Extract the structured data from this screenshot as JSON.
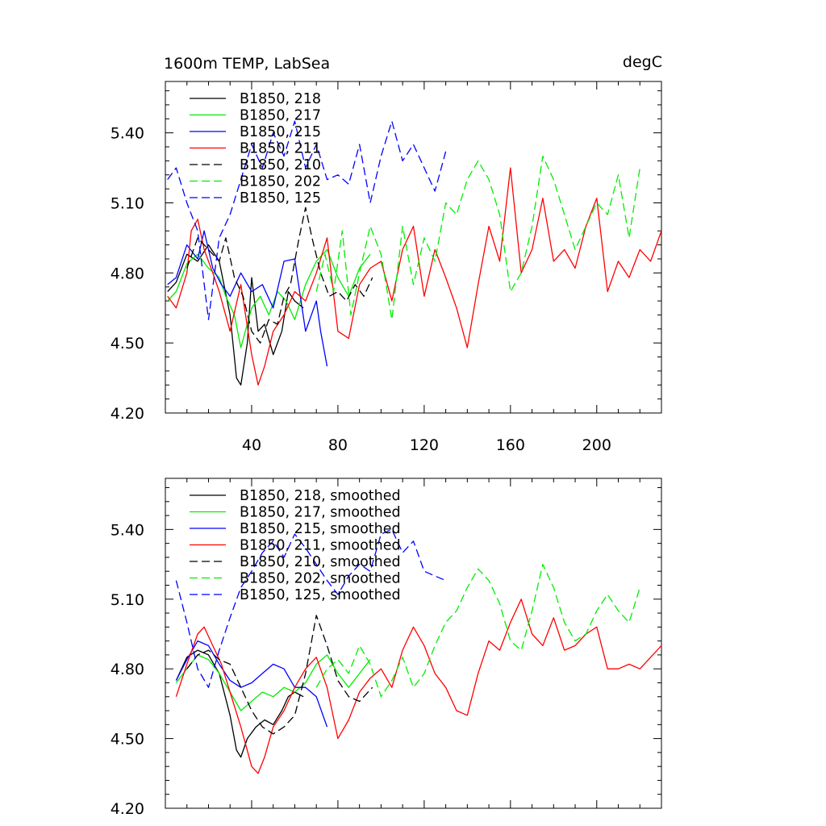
{
  "title": "1600m TEMP, LabSea",
  "units": "degC",
  "chart_data": [
    {
      "type": "line",
      "title": "1600m TEMP, LabSea",
      "right_title": "degC",
      "xlim": [
        0,
        230
      ],
      "ylim": [
        4.2,
        5.62
      ],
      "xticks": [
        40,
        80,
        120,
        160,
        200
      ],
      "yticks": [
        4.2,
        4.5,
        4.8,
        5.1,
        5.4
      ],
      "xtick_labels": [
        "40",
        "80",
        "120",
        "160",
        "200"
      ],
      "ytick_labels": [
        "4.20",
        "4.50",
        "4.80",
        "5.10",
        "5.40"
      ],
      "series": [
        {
          "name": "B1850, 218",
          "color": "#000000",
          "dash": "solid",
          "x": [
            1,
            5,
            10,
            15,
            20,
            25,
            30,
            33,
            35,
            38,
            40,
            43,
            46,
            50,
            54,
            57,
            60,
            64
          ],
          "y": [
            4.72,
            4.76,
            4.88,
            4.85,
            4.92,
            4.85,
            4.62,
            4.35,
            4.32,
            4.5,
            4.78,
            4.55,
            4.58,
            4.45,
            4.55,
            4.72,
            4.68,
            4.65
          ]
        },
        {
          "name": "B1850, 217",
          "color": "#00ee00",
          "dash": "solid",
          "x": [
            1,
            5,
            10,
            15,
            20,
            25,
            28,
            32,
            35,
            40,
            44,
            48,
            52,
            56,
            60,
            65,
            70,
            75,
            80,
            85,
            90,
            95
          ],
          "y": [
            4.68,
            4.72,
            4.84,
            4.88,
            4.82,
            4.78,
            4.7,
            4.62,
            4.48,
            4.65,
            4.7,
            4.62,
            4.72,
            4.68,
            4.6,
            4.75,
            4.85,
            4.9,
            4.78,
            4.7,
            4.82,
            4.88
          ]
        },
        {
          "name": "B1850, 215",
          "color": "#0000ff",
          "dash": "solid",
          "x": [
            1,
            5,
            10,
            15,
            18,
            22,
            26,
            30,
            35,
            40,
            45,
            50,
            55,
            60,
            65,
            70,
            72,
            75
          ],
          "y": [
            4.75,
            4.78,
            4.92,
            4.86,
            4.98,
            4.82,
            4.75,
            4.7,
            4.8,
            4.72,
            4.75,
            4.65,
            4.85,
            4.86,
            4.55,
            4.68,
            4.55,
            4.4
          ]
        },
        {
          "name": "B1850, 211",
          "color": "#ff0000",
          "dash": "solid",
          "x": [
            1,
            5,
            10,
            12,
            15,
            18,
            22,
            25,
            30,
            35,
            40,
            43,
            46,
            50,
            55,
            60,
            65,
            70,
            75,
            80,
            85,
            90,
            95,
            100,
            105,
            110,
            115,
            120,
            125,
            130,
            135,
            140,
            145,
            150,
            155,
            160,
            165,
            170,
            175,
            180,
            185,
            190,
            195,
            200,
            205,
            210,
            215,
            220,
            225,
            230
          ],
          "y": [
            4.7,
            4.65,
            4.8,
            4.98,
            5.03,
            4.9,
            4.8,
            4.72,
            4.55,
            4.75,
            4.45,
            4.32,
            4.4,
            4.55,
            4.62,
            4.72,
            4.68,
            4.8,
            4.95,
            4.55,
            4.52,
            4.75,
            4.82,
            4.85,
            4.68,
            4.9,
            5.0,
            4.7,
            4.9,
            4.78,
            4.65,
            4.48,
            4.75,
            5.0,
            4.85,
            5.25,
            4.8,
            4.9,
            5.12,
            4.85,
            4.9,
            4.82,
            5.0,
            5.12,
            4.72,
            4.85,
            4.78,
            4.9,
            4.85,
            4.98
          ]
        },
        {
          "name": "B1850, 210",
          "color": "#000000",
          "dash": "dashed",
          "x": [
            10,
            15,
            20,
            25,
            28,
            32,
            36,
            40,
            44,
            48,
            52,
            55,
            58,
            62,
            65,
            68,
            72,
            76,
            80,
            84,
            88,
            92,
            96
          ],
          "y": [
            4.82,
            4.95,
            4.9,
            4.85,
            4.95,
            4.78,
            4.7,
            4.55,
            4.5,
            4.6,
            4.58,
            4.7,
            4.75,
            4.95,
            5.08,
            4.95,
            4.8,
            4.7,
            4.72,
            4.68,
            4.75,
            4.7,
            4.78
          ]
        },
        {
          "name": "B1850, 202",
          "color": "#00ee00",
          "dash": "dashed",
          "x": [
            70,
            74,
            78,
            82,
            86,
            90,
            95,
            100,
            105,
            110,
            115,
            120,
            125,
            130,
            135,
            140,
            145,
            150,
            155,
            160,
            165,
            170,
            175,
            180,
            185,
            190,
            195,
            200,
            205,
            210,
            215,
            220
          ],
          "y": [
            4.72,
            4.88,
            4.72,
            4.98,
            4.62,
            4.8,
            5.0,
            4.88,
            4.6,
            5.0,
            4.75,
            4.95,
            4.85,
            5.1,
            5.05,
            5.2,
            5.28,
            5.2,
            5.05,
            4.72,
            4.8,
            5.0,
            5.3,
            5.2,
            5.05,
            4.9,
            5.0,
            5.1,
            5.05,
            5.22,
            4.95,
            5.25
          ]
        },
        {
          "name": "B1850, 125",
          "color": "#0000ff",
          "dash": "dashed",
          "x": [
            1,
            5,
            10,
            15,
            20,
            25,
            30,
            35,
            40,
            45,
            50,
            55,
            60,
            65,
            70,
            75,
            80,
            85,
            90,
            95,
            100,
            105,
            110,
            115,
            120,
            125,
            130
          ],
          "y": [
            5.2,
            5.25,
            5.1,
            4.98,
            4.6,
            4.95,
            5.05,
            5.2,
            5.35,
            5.25,
            5.4,
            5.3,
            5.45,
            5.25,
            5.35,
            5.2,
            5.22,
            5.18,
            5.35,
            5.1,
            5.3,
            5.45,
            5.28,
            5.35,
            5.25,
            5.15,
            5.32
          ]
        }
      ]
    },
    {
      "type": "line",
      "xlim": [
        0,
        230
      ],
      "ylim": [
        4.2,
        5.62
      ],
      "yticks": [
        4.2,
        4.5,
        4.8,
        5.1,
        5.4
      ],
      "ytick_labels": [
        "4.20",
        "4.50",
        "4.80",
        "5.10",
        "5.40"
      ],
      "series": [
        {
          "name": "B1850, 218, smoothed",
          "color": "#000000",
          "dash": "solid",
          "x": [
            5,
            10,
            15,
            20,
            25,
            30,
            33,
            35,
            38,
            42,
            46,
            50,
            54,
            57,
            60,
            64
          ],
          "y": [
            4.75,
            4.85,
            4.88,
            4.86,
            4.78,
            4.6,
            4.45,
            4.42,
            4.5,
            4.55,
            4.58,
            4.56,
            4.62,
            4.68,
            4.7,
            4.68
          ]
        },
        {
          "name": "B1850, 217, smoothed",
          "color": "#00ee00",
          "dash": "solid",
          "x": [
            5,
            10,
            15,
            20,
            25,
            30,
            35,
            40,
            45,
            50,
            55,
            60,
            65,
            70,
            75,
            80,
            85,
            90,
            95
          ],
          "y": [
            4.74,
            4.8,
            4.86,
            4.84,
            4.78,
            4.7,
            4.62,
            4.66,
            4.7,
            4.68,
            4.72,
            4.7,
            4.74,
            4.82,
            4.86,
            4.78,
            4.72,
            4.78,
            4.84
          ]
        },
        {
          "name": "B1850, 215, smoothed",
          "color": "#0000ff",
          "dash": "solid",
          "x": [
            5,
            10,
            15,
            20,
            25,
            30,
            35,
            40,
            45,
            50,
            55,
            60,
            65,
            70,
            75
          ],
          "y": [
            4.75,
            4.84,
            4.92,
            4.9,
            4.82,
            4.75,
            4.72,
            4.74,
            4.78,
            4.82,
            4.8,
            4.72,
            4.72,
            4.68,
            4.55
          ]
        },
        {
          "name": "B1850, 211, smoothed",
          "color": "#ff0000",
          "dash": "solid",
          "x": [
            5,
            10,
            15,
            18,
            22,
            26,
            30,
            35,
            40,
            43,
            46,
            50,
            55,
            60,
            65,
            70,
            75,
            80,
            85,
            90,
            95,
            100,
            105,
            110,
            115,
            120,
            125,
            130,
            135,
            140,
            145,
            150,
            155,
            160,
            165,
            170,
            175,
            180,
            185,
            190,
            195,
            200,
            205,
            210,
            215,
            220,
            225,
            230
          ],
          "y": [
            4.68,
            4.82,
            4.95,
            4.98,
            4.9,
            4.82,
            4.7,
            4.55,
            4.38,
            4.35,
            4.42,
            4.55,
            4.62,
            4.72,
            4.8,
            4.85,
            4.72,
            4.5,
            4.58,
            4.7,
            4.76,
            4.8,
            4.72,
            4.88,
            4.98,
            4.9,
            4.78,
            4.72,
            4.62,
            4.6,
            4.78,
            4.92,
            4.88,
            5.0,
            5.1,
            4.95,
            4.9,
            5.02,
            4.88,
            4.9,
            4.95,
            4.98,
            4.8,
            4.8,
            4.82,
            4.8,
            4.85,
            4.9
          ]
        },
        {
          "name": "B1850, 210, smoothed",
          "color": "#000000",
          "dash": "dashed",
          "x": [
            10,
            15,
            20,
            25,
            30,
            35,
            40,
            45,
            50,
            55,
            60,
            65,
            70,
            75,
            80,
            85,
            90,
            96
          ],
          "y": [
            4.8,
            4.86,
            4.88,
            4.84,
            4.82,
            4.72,
            4.62,
            4.55,
            4.52,
            4.55,
            4.6,
            4.78,
            5.03,
            4.9,
            4.75,
            4.68,
            4.66,
            4.72
          ]
        },
        {
          "name": "B1850, 202, smoothed",
          "color": "#00ee00",
          "dash": "dashed",
          "x": [
            70,
            75,
            80,
            85,
            90,
            95,
            100,
            105,
            110,
            115,
            120,
            125,
            130,
            135,
            140,
            145,
            150,
            155,
            160,
            165,
            170,
            175,
            180,
            185,
            190,
            195,
            200,
            205,
            210,
            215,
            220
          ],
          "y": [
            4.72,
            4.8,
            4.84,
            4.78,
            4.9,
            4.82,
            4.68,
            4.75,
            4.85,
            4.72,
            4.78,
            4.9,
            5.0,
            5.05,
            5.15,
            5.23,
            5.18,
            5.08,
            4.92,
            4.88,
            5.05,
            5.25,
            5.15,
            5.0,
            4.92,
            4.95,
            5.05,
            5.12,
            5.05,
            5.0,
            5.15
          ]
        },
        {
          "name": "B1850, 125, smoothed",
          "color": "#0000ff",
          "dash": "dashed",
          "x": [
            5,
            10,
            15,
            20,
            25,
            30,
            35,
            40,
            45,
            50,
            55,
            60,
            65,
            70,
            75,
            80,
            85,
            90,
            95,
            100,
            105,
            110,
            115,
            120,
            125,
            130
          ],
          "y": [
            5.18,
            5.0,
            4.8,
            4.72,
            4.88,
            5.02,
            5.15,
            5.22,
            5.3,
            5.35,
            5.28,
            5.38,
            5.32,
            5.25,
            5.18,
            5.12,
            5.2,
            5.25,
            5.22,
            5.38,
            5.4,
            5.3,
            5.35,
            5.22,
            5.2,
            5.18
          ]
        }
      ]
    }
  ]
}
